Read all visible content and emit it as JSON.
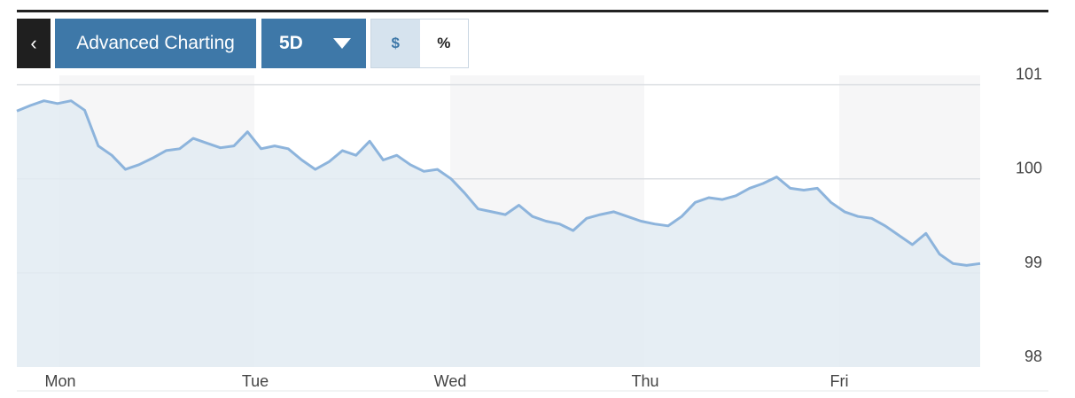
{
  "toolbar": {
    "back_label": "‹",
    "advanced_label": "Advanced Charting",
    "range_label": "5D",
    "toggle_dollar": "$",
    "toggle_percent": "%"
  },
  "colors": {
    "line": "#8db4dc",
    "area": "#e2ebf2",
    "shade": "#f6f6f7",
    "grid": "#dcdfe3",
    "accent": "#3e78a8"
  },
  "chart_data": {
    "type": "area",
    "title": "",
    "xlabel": "",
    "ylabel": "",
    "x_ticks": [
      "Mon",
      "Tue",
      "Wed",
      "Thu",
      "Fri"
    ],
    "y_ticks": [
      98,
      99,
      100,
      101
    ],
    "ylim": [
      98,
      101.1
    ],
    "grid": true,
    "series": [
      {
        "values": [
          100.72,
          100.78,
          100.83,
          100.8,
          100.83,
          100.73,
          100.35,
          100.25,
          100.1,
          100.15,
          100.22,
          100.3,
          100.32,
          100.43,
          100.38,
          100.33,
          100.35,
          100.5,
          100.32,
          100.35,
          100.32,
          100.2,
          100.1,
          100.18,
          100.3,
          100.25,
          100.4,
          100.2,
          100.25,
          100.15,
          100.08,
          100.1,
          100.0,
          99.85,
          99.68,
          99.65,
          99.62,
          99.72,
          99.6,
          99.55,
          99.52,
          99.45,
          99.58,
          99.62,
          99.65,
          99.6,
          99.55,
          99.52,
          99.5,
          99.6,
          99.75,
          99.8,
          99.78,
          99.82,
          99.9,
          99.95,
          100.02,
          99.9,
          99.88,
          99.9,
          99.75,
          99.65,
          99.6,
          99.58,
          99.5,
          99.4,
          99.3,
          99.42,
          99.2,
          99.1,
          99.08,
          99.1
        ]
      }
    ]
  }
}
